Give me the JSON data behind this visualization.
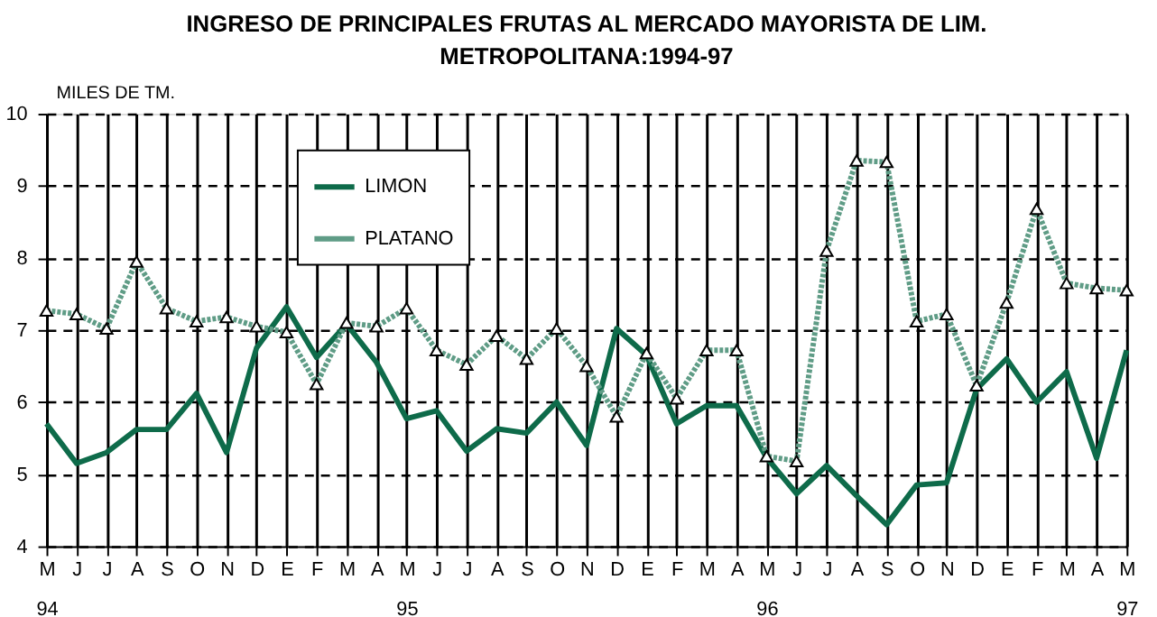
{
  "chart_data": {
    "type": "line",
    "title": "INGRESO DE PRINCIPALES FRUTAS AL MERCADO MAYORISTA DE LIM.\nMETROPOLITANA:1994-97",
    "ylabel": "MILES DE TM.",
    "categories": [
      "M\n94",
      "J",
      "J",
      "A",
      "S",
      "O",
      "N",
      "D",
      "E",
      "F",
      "M",
      "A",
      "M\n95",
      "J",
      "J",
      "A",
      "S",
      "O",
      "N",
      "D",
      "E",
      "F",
      "M",
      "A",
      "M\n96",
      "J",
      "J",
      "A",
      "S",
      "O",
      "N",
      "D",
      "E",
      "F",
      "M",
      "A",
      "M\n97"
    ],
    "series": [
      {
        "name": "LIMON",
        "color": "#0e6b4a",
        "line_style": "solid",
        "marker": "none",
        "values": [
          5.7,
          5.15,
          5.3,
          5.62,
          5.62,
          6.12,
          5.3,
          6.75,
          7.32,
          6.62,
          7.08,
          6.55,
          5.77,
          5.88,
          5.32,
          5.63,
          5.57,
          6.0,
          5.4,
          7.02,
          6.65,
          5.7,
          5.95,
          5.95,
          5.23,
          4.73,
          5.12,
          4.7,
          4.3,
          4.85,
          4.88,
          6.18,
          6.6,
          6.0,
          6.42,
          5.22,
          6.72
        ]
      },
      {
        "name": "PLATANO",
        "color": "#5f9c86",
        "line_style": "dotted",
        "marker": "triangle",
        "values": [
          7.27,
          7.22,
          7.02,
          7.95,
          7.3,
          7.12,
          7.18,
          7.05,
          6.97,
          6.25,
          7.1,
          7.05,
          7.3,
          6.72,
          6.52,
          6.92,
          6.6,
          7.02,
          6.5,
          5.8,
          6.68,
          6.05,
          6.72,
          6.72,
          5.25,
          5.18,
          8.1,
          9.35,
          9.33,
          7.12,
          7.22,
          6.23,
          7.38,
          8.68,
          7.65,
          7.58,
          7.55
        ]
      }
    ],
    "ylim": [
      4,
      10
    ],
    "yticks": [
      4,
      5,
      6,
      7,
      8,
      9,
      10
    ],
    "grid": true,
    "legend": "top left"
  }
}
